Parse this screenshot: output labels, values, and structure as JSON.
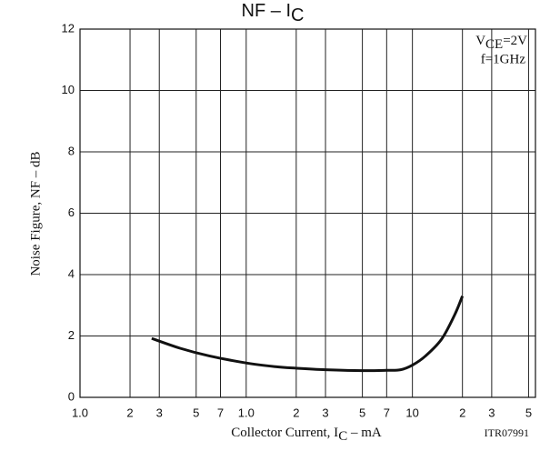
{
  "chart_data": {
    "type": "line",
    "title": "NF  –  I",
    "title_subscript": "C",
    "y_label": "Noise Figure, NF  –  dB",
    "x_label": "Collector Current, I",
    "x_label_subscript": "C",
    "x_label_unit": "  –  mA",
    "annotation_v": "V",
    "annotation_v_subscript": "CE",
    "annotation_v_value": "=2V",
    "annotation_f": "f=1GHz",
    "code": "ITR07991",
    "xscale": "log",
    "xlim": [
      0.1,
      55
    ],
    "xticks": [
      {
        "value": 0.1,
        "label": "1.0"
      },
      {
        "value": 0.2,
        "label": "2"
      },
      {
        "value": 0.3,
        "label": "3"
      },
      {
        "value": 0.5,
        "label": "5"
      },
      {
        "value": 0.7,
        "label": "7"
      },
      {
        "value": 1,
        "label": "1.0"
      },
      2,
      3,
      5,
      7,
      10,
      {
        "value": 20,
        "label": "2"
      },
      {
        "value": 30,
        "label": "3"
      },
      {
        "value": 50,
        "label": "5"
      }
    ],
    "ylim": [
      0,
      12
    ],
    "yticks": [
      0,
      2,
      4,
      6,
      8,
      10,
      12
    ],
    "grid": true,
    "color": "#111111",
    "x": [
      0.27,
      0.4,
      0.6,
      1,
      1.5,
      2,
      3,
      5,
      7,
      8.5,
      10,
      12,
      15,
      18,
      20
    ],
    "values": [
      1.92,
      1.6,
      1.35,
      1.12,
      1.0,
      0.95,
      0.9,
      0.87,
      0.88,
      0.9,
      1.05,
      1.35,
      1.9,
      2.7,
      3.3
    ]
  }
}
